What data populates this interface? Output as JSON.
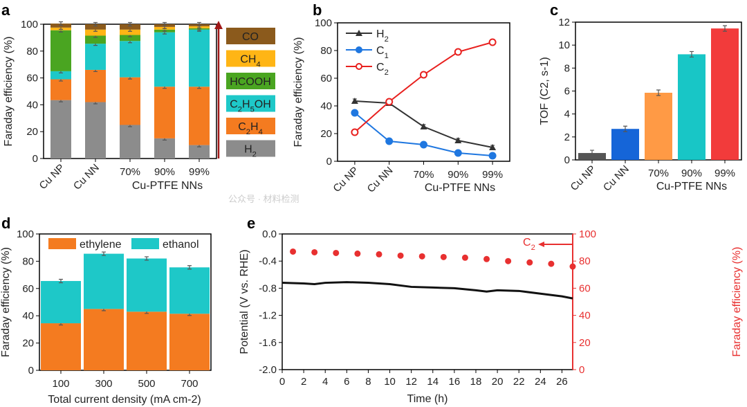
{
  "chart_data": [
    {
      "panel": "a",
      "type": "bar",
      "stacked": true,
      "ylabel": "Faraday efficiency (%)",
      "xlabel": "Cu-PTFE NNs",
      "ylim": [
        0,
        100
      ],
      "yticks": [
        0,
        20,
        40,
        60,
        80,
        100
      ],
      "categories": [
        "Cu NP",
        "Cu NN",
        "70%",
        "90%",
        "99%"
      ],
      "series": [
        {
          "name": "H2",
          "color": "#8c8c8c",
          "values": [
            43.5,
            42,
            25,
            15,
            10
          ]
        },
        {
          "name": "C2H4",
          "color": "#f47b20",
          "values": [
            15.5,
            24,
            35.5,
            38.5,
            43.5
          ]
        },
        {
          "name": "C2H5OH",
          "color": "#1ec8c8",
          "values": [
            6,
            19.5,
            27,
            40.5,
            42.5
          ]
        },
        {
          "name": "HCOOH",
          "color": "#4aa521",
          "values": [
            30.5,
            6,
            4.5,
            2,
            1
          ]
        },
        {
          "name": "CH4",
          "color": "#ffb515",
          "values": [
            2,
            4.5,
            4,
            2,
            1.5
          ]
        },
        {
          "name": "CO",
          "color": "#8b5a1c",
          "values": [
            3,
            4,
            4,
            2,
            1.5
          ]
        }
      ]
    },
    {
      "panel": "b",
      "type": "line",
      "ylabel": "Faraday efficiency (%)",
      "xlabel": "Cu-PTFE NNs",
      "ylim": [
        0,
        100
      ],
      "yticks": [
        0,
        20,
        40,
        60,
        80,
        100
      ],
      "categories": [
        "Cu NP",
        "Cu NN",
        "70%",
        "90%",
        "99%"
      ],
      "series": [
        {
          "name": "H2",
          "color": "#333333",
          "marker": "triangle",
          "values": [
            43.5,
            42,
            25,
            15,
            10
          ]
        },
        {
          "name": "C1",
          "color": "#1f77e0",
          "marker": "circle",
          "values": [
            35,
            14.5,
            12,
            6,
            4
          ]
        },
        {
          "name": "C2",
          "color": "#e8201e",
          "marker": "open-circle",
          "values": [
            21,
            43,
            62.5,
            79,
            86
          ]
        }
      ]
    },
    {
      "panel": "c",
      "type": "bar",
      "ylabel": "TOF (C2, s-1)",
      "xlabel": "Cu-PTFE NNs",
      "ylim": [
        0,
        12
      ],
      "yticks": [
        0,
        2,
        4,
        6,
        8,
        10,
        12
      ],
      "categories": [
        "Cu NP",
        "Cu NN",
        "70%",
        "90%",
        "99%"
      ],
      "values": [
        0.6,
        2.7,
        5.85,
        9.2,
        11.45
      ],
      "colors": [
        "#555555",
        "#1565d8",
        "#ff9a45",
        "#18c6c6",
        "#f23b3b"
      ]
    },
    {
      "panel": "d",
      "type": "bar",
      "stacked": true,
      "ylabel": "Faraday efficiency (%)",
      "xlabel": "Total current density (mA cm-2)",
      "ylim": [
        0,
        100
      ],
      "yticks": [
        0,
        20,
        40,
        60,
        80,
        100
      ],
      "categories": [
        "100",
        "300",
        "500",
        "700"
      ],
      "series": [
        {
          "name": "ethylene",
          "color": "#f47b20",
          "values": [
            34.5,
            45,
            43,
            41.5
          ]
        },
        {
          "name": "ethanol",
          "color": "#1ec8c8",
          "values": [
            31,
            40.5,
            39,
            34
          ]
        }
      ]
    },
    {
      "panel": "e",
      "type": "line",
      "xlabel": "Time (h)",
      "ylabel": "Potential (V vs. RHE)",
      "ylabel_right": "Faraday efficiency (%)",
      "xlim": [
        0,
        27
      ],
      "ylim": [
        -2.0,
        0.0
      ],
      "ylim_right": [
        0,
        100
      ],
      "xticks": [
        0,
        2,
        4,
        6,
        8,
        10,
        12,
        14,
        16,
        18,
        20,
        22,
        24,
        26
      ],
      "yticks": [
        "0.0",
        "-0.4",
        "-0.8",
        "-1.2",
        "-1.6",
        "-2.0"
      ],
      "yticks_right": [
        0,
        20,
        40,
        60,
        80,
        100
      ],
      "potential": {
        "x": [
          0,
          2,
          3,
          4,
          6,
          8,
          10,
          12,
          14,
          16,
          18,
          19,
          20,
          22,
          24,
          26,
          27
        ],
        "y": [
          -0.72,
          -0.73,
          -0.74,
          -0.72,
          -0.71,
          -0.72,
          -0.74,
          -0.78,
          -0.79,
          -0.8,
          -0.83,
          -0.85,
          -0.83,
          -0.84,
          -0.88,
          -0.92,
          -0.95
        ]
      },
      "fe_c2": {
        "name": "C2",
        "x": [
          1,
          3,
          5,
          7,
          9,
          11,
          13,
          15,
          17,
          19,
          21,
          23,
          25,
          27
        ],
        "y": [
          87,
          86.5,
          86,
          85.5,
          85,
          84,
          83.5,
          83,
          82.5,
          81.5,
          80,
          79,
          78,
          76
        ]
      }
    }
  ],
  "panel_labels": [
    "a",
    "b",
    "c",
    "d",
    "e"
  ],
  "watermark": "公众号 · 材料检测"
}
